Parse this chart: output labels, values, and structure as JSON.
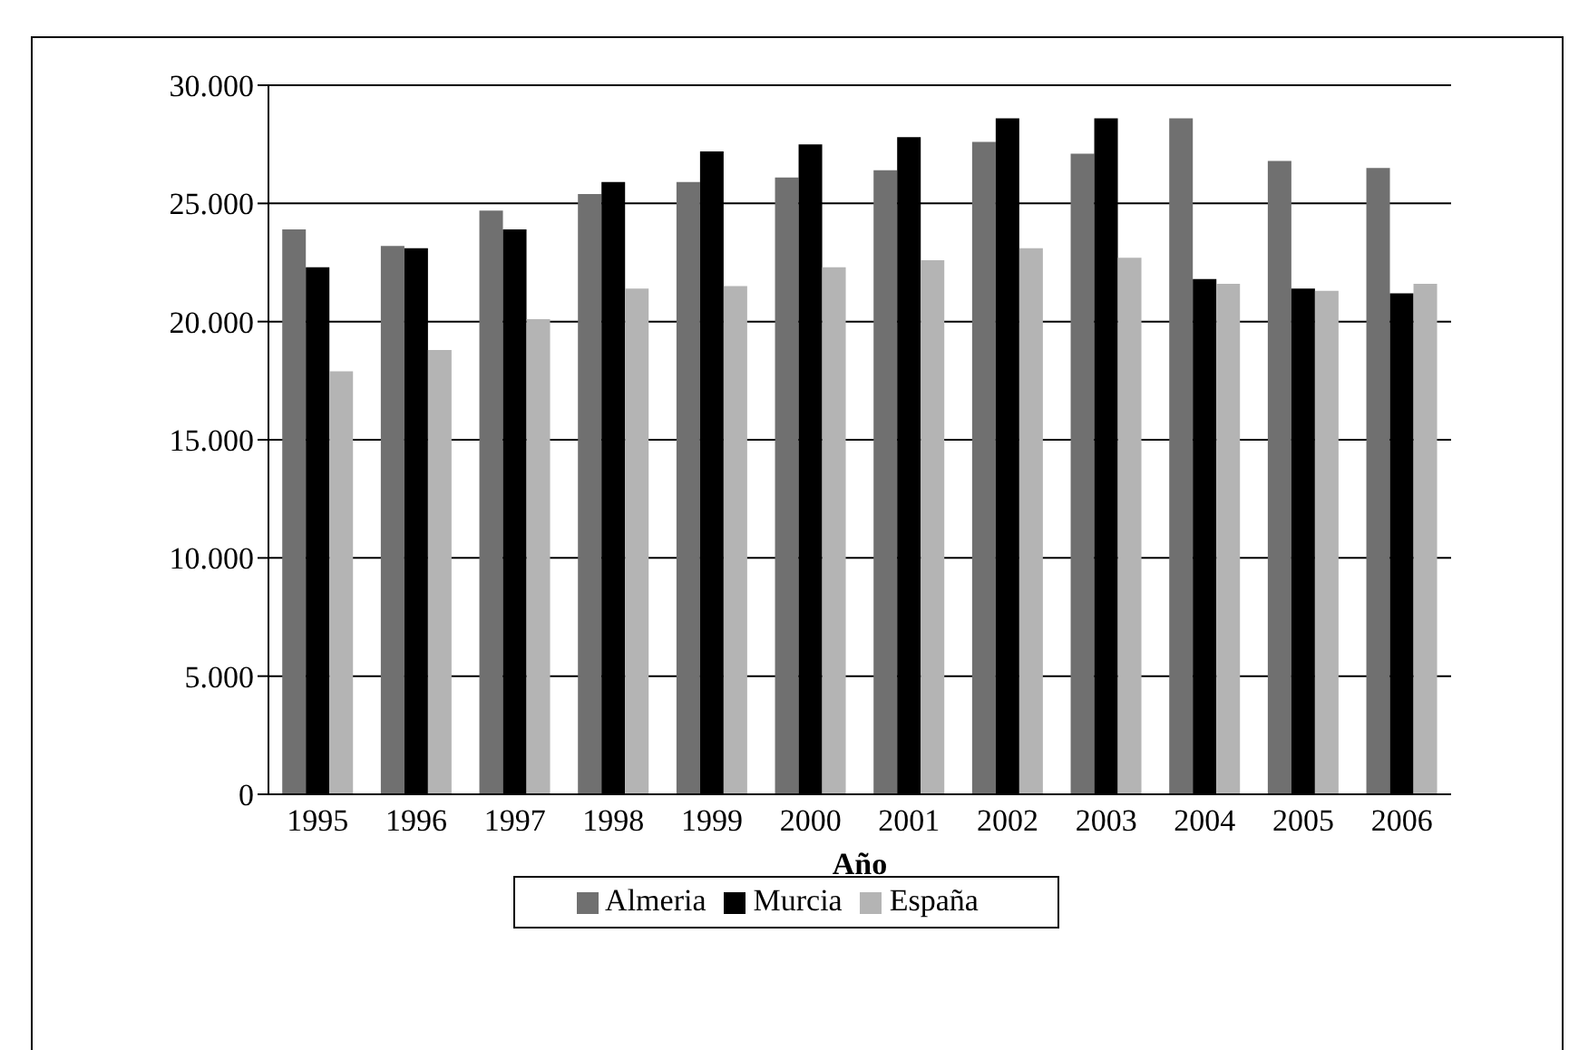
{
  "chart_data": {
    "type": "bar",
    "xlabel": "Año",
    "categories": [
      "1995",
      "1996",
      "1997",
      "1998",
      "1999",
      "2000",
      "2001",
      "2002",
      "2003",
      "2004",
      "2005",
      "2006"
    ],
    "series": [
      {
        "name": "Almeria",
        "color": "#707070",
        "values": [
          23900,
          23200,
          24700,
          25400,
          25900,
          26100,
          26400,
          27600,
          27100,
          28600,
          26800,
          26500
        ]
      },
      {
        "name": "Murcia",
        "color": "#000000",
        "values": [
          22300,
          23100,
          23900,
          25900,
          27200,
          27500,
          27800,
          28600,
          28600,
          21800,
          21400,
          21200
        ]
      },
      {
        "name": "España",
        "color": "#b4b4b4",
        "values": [
          17900,
          18800,
          20100,
          21400,
          21500,
          22300,
          22600,
          23100,
          22700,
          21600,
          21300,
          21600
        ]
      }
    ],
    "ylim": [
      0,
      30000
    ],
    "yticks": [
      0,
      {
        "value": 5000,
        "label": "5.000"
      },
      {
        "value": 10000,
        "label": "10.000"
      },
      {
        "value": 15000,
        "label": "15.000"
      },
      {
        "value": 20000,
        "label": "20.000"
      },
      {
        "value": 25000,
        "label": "25.000"
      },
      {
        "value": 30000,
        "label": "30.000"
      }
    ],
    "grid": "y",
    "legend": "bottom"
  }
}
